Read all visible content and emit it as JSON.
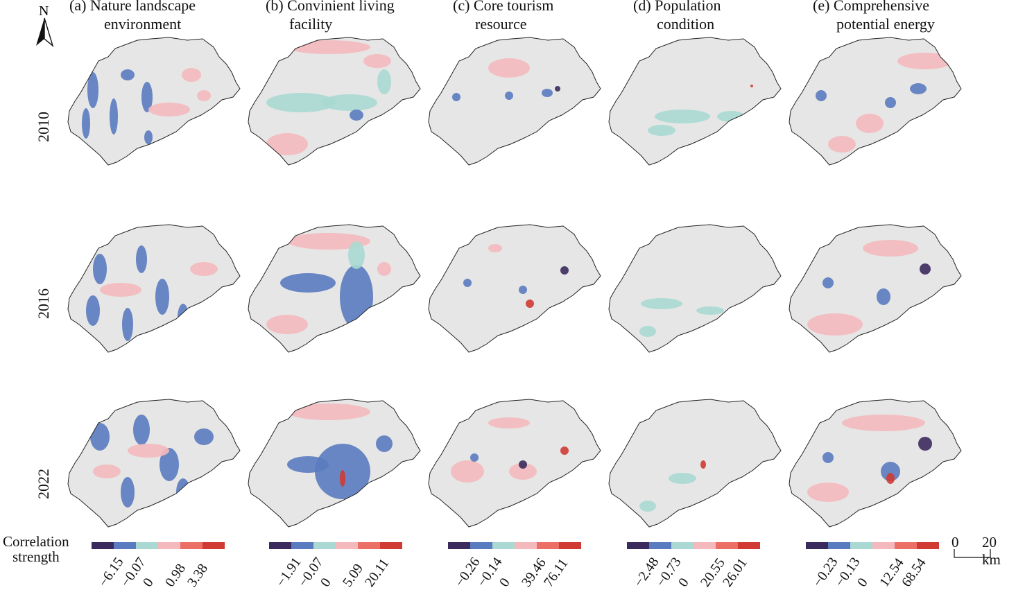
{
  "columns": [
    {
      "line1": "(a) Nature landscape",
      "line2": "environment"
    },
    {
      "line1": "(b) Convinient living",
      "line2": "facility"
    },
    {
      "line1": "(c) Core tourism",
      "line2": "resource"
    },
    {
      "line1": "(d) Population",
      "line2": "condition"
    },
    {
      "line1": "(e) Comprehensive",
      "line2": "potential energy"
    }
  ],
  "rows": [
    "2010",
    "2016",
    "2022"
  ],
  "north_label": "N",
  "legend_title": [
    "Correlation",
    "strength"
  ],
  "legend_colors": [
    "#3b2a5c",
    "#5a7bbf",
    "#a9d9d2",
    "#f4b9bd",
    "#ec6f66",
    "#d03a33"
  ],
  "legends": [
    {
      "ticks": [
        "−6.15",
        "−0.07",
        "0",
        "0.98",
        "3.38"
      ]
    },
    {
      "ticks": [
        "−1.91",
        "−0.07",
        "0",
        "5.09",
        "20.11"
      ]
    },
    {
      "ticks": [
        "−0.26",
        "−0.14",
        "0",
        "39.46",
        "76.11"
      ]
    },
    {
      "ticks": [
        "−2.48",
        "−0.73",
        "0",
        "20.55",
        "26.01"
      ]
    },
    {
      "ticks": [
        "−0.23",
        "−0.13",
        "0",
        "12.54",
        "68.54"
      ]
    }
  ],
  "scale_bar": {
    "start": "0",
    "end": "20 km"
  },
  "map_colors": {
    "background": "#e6e6e6",
    "outline": "#222222"
  }
}
